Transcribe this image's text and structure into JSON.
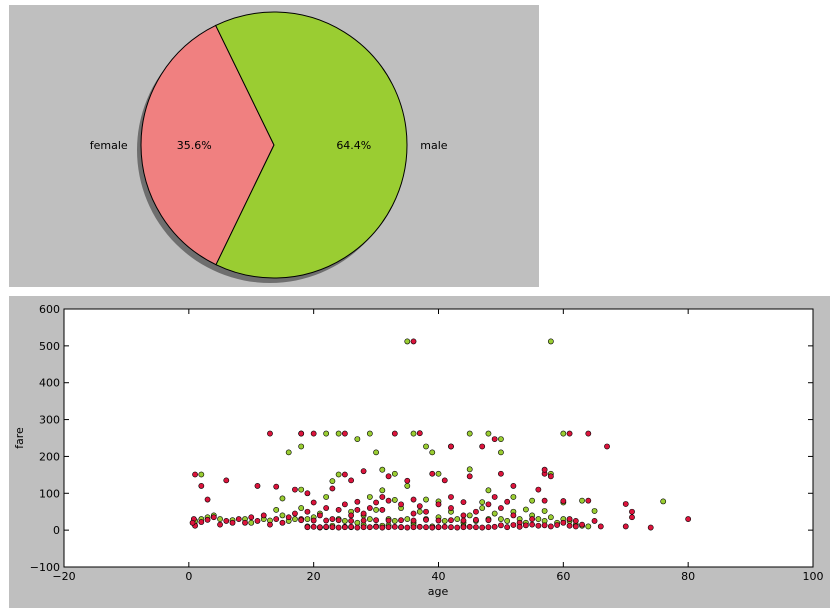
{
  "chart_data": [
    {
      "type": "pie",
      "slices": [
        {
          "label": "female",
          "value": 35.6,
          "pct_label": "35.6%",
          "color": "#f08080"
        },
        {
          "label": "male",
          "value": 64.4,
          "pct_label": "64.4%",
          "color": "#9acd32"
        }
      ],
      "shadow": true,
      "background": "#bfbfbf"
    },
    {
      "type": "scatter",
      "xlabel": "age",
      "ylabel": "fare",
      "xlim": [
        -20,
        100
      ],
      "ylim": [
        -100,
        600
      ],
      "xticks": [
        "−20",
        "0",
        "20",
        "40",
        "60",
        "80",
        "100"
      ],
      "yticks": [
        "−100",
        "0",
        "100",
        "200",
        "300",
        "400",
        "500",
        "600"
      ],
      "grid": false,
      "background": "#bfbfbf",
      "series": [
        {
          "color": "#9acd32",
          "points": [
            [
              35,
              512
            ],
            [
              58,
              512
            ],
            [
              2,
              151
            ],
            [
              16,
              211
            ],
            [
              18,
              227
            ],
            [
              18,
              262
            ],
            [
              22,
              262
            ],
            [
              24,
              262
            ],
            [
              27,
              247
            ],
            [
              29,
              262
            ],
            [
              30,
              211
            ],
            [
              31,
              164
            ],
            [
              33,
              153
            ],
            [
              36,
              262
            ],
            [
              38,
              227
            ],
            [
              39,
              211
            ],
            [
              40,
              153
            ],
            [
              42,
              227
            ],
            [
              45,
              262
            ],
            [
              48,
              262
            ],
            [
              50,
              247
            ],
            [
              50,
              211
            ],
            [
              58,
              153
            ],
            [
              60,
              262
            ],
            [
              24,
              151
            ],
            [
              35,
              120
            ],
            [
              45,
              165
            ],
            [
              23,
              133
            ],
            [
              18,
              110
            ],
            [
              31,
              108
            ],
            [
              15,
              86
            ],
            [
              22,
              90
            ],
            [
              29,
              90
            ],
            [
              33,
              82
            ],
            [
              38,
              83
            ],
            [
              40,
              78
            ],
            [
              47,
              76
            ],
            [
              55,
              80
            ],
            [
              63,
              80
            ],
            [
              76,
              78
            ],
            [
              48,
              108
            ],
            [
              52,
              90
            ],
            [
              60,
              75
            ],
            [
              54,
              56
            ],
            [
              57,
              52
            ],
            [
              65,
              52
            ],
            [
              0.9,
              18
            ],
            [
              1,
              25
            ],
            [
              2,
              30
            ],
            [
              3,
              35
            ],
            [
              4,
              40
            ],
            [
              5,
              30
            ],
            [
              7,
              27
            ],
            [
              9,
              30
            ],
            [
              10,
              20
            ],
            [
              12,
              30
            ],
            [
              13,
              26
            ],
            [
              14,
              55
            ],
            [
              15,
              40
            ],
            [
              16,
              25
            ],
            [
              17,
              30
            ],
            [
              18,
              60
            ],
            [
              19,
              30
            ],
            [
              20,
              35
            ],
            [
              21,
              45
            ],
            [
              22,
              8
            ],
            [
              23,
              12
            ],
            [
              24,
              30
            ],
            [
              25,
              25
            ],
            [
              26,
              50
            ],
            [
              27,
              20
            ],
            [
              28,
              40
            ],
            [
              29,
              30
            ],
            [
              30,
              55
            ],
            [
              31,
              12
            ],
            [
              32,
              30
            ],
            [
              33,
              25
            ],
            [
              34,
              60
            ],
            [
              35,
              30
            ],
            [
              36,
              20
            ],
            [
              37,
              50
            ],
            [
              38,
              30
            ],
            [
              39,
              10
            ],
            [
              40,
              35
            ],
            [
              41,
              25
            ],
            [
              42,
              50
            ],
            [
              43,
              30
            ],
            [
              44,
              20
            ],
            [
              45,
              40
            ],
            [
              46,
              25
            ],
            [
              47,
              60
            ],
            [
              48,
              30
            ],
            [
              49,
              45
            ],
            [
              50,
              30
            ],
            [
              51,
              25
            ],
            [
              52,
              50
            ],
            [
              53,
              30
            ],
            [
              54,
              20
            ],
            [
              55,
              40
            ],
            [
              56,
              30
            ],
            [
              57,
              25
            ],
            [
              58,
              35
            ],
            [
              59,
              20
            ],
            [
              60,
              30
            ],
            [
              61,
              25
            ],
            [
              62,
              15
            ],
            [
              63,
              12
            ],
            [
              64,
              10
            ],
            [
              26,
              8
            ],
            [
              28,
              14
            ],
            [
              30,
              10
            ],
            [
              34,
              8
            ],
            [
              36,
              13
            ],
            [
              40,
              8
            ],
            [
              44,
              11
            ],
            [
              19,
              10
            ],
            [
              21,
              7
            ],
            [
              25,
              9
            ],
            [
              32,
              13
            ]
          ]
        },
        {
          "color": "#dc143c",
          "points": [
            [
              36,
              512
            ],
            [
              1,
              151
            ],
            [
              13,
              262
            ],
            [
              18,
              262
            ],
            [
              20,
              262
            ],
            [
              25,
              262
            ],
            [
              33,
              262
            ],
            [
              37,
              263
            ],
            [
              42,
              227
            ],
            [
              47,
              227
            ],
            [
              49,
              247
            ],
            [
              50,
              153
            ],
            [
              57,
              153
            ],
            [
              61,
              262
            ],
            [
              64,
              262
            ],
            [
              67,
              227
            ],
            [
              57,
              164
            ],
            [
              58,
              146
            ],
            [
              2,
              120
            ],
            [
              6,
              135
            ],
            [
              11,
              120
            ],
            [
              14,
              118
            ],
            [
              17,
              110
            ],
            [
              25,
              151
            ],
            [
              26,
              135
            ],
            [
              28,
              160
            ],
            [
              32,
              146
            ],
            [
              35,
              134
            ],
            [
              39,
              153
            ],
            [
              41,
              135
            ],
            [
              45,
              146
            ],
            [
              52,
              120
            ],
            [
              56,
              110
            ],
            [
              3,
              83
            ],
            [
              19,
              100
            ],
            [
              23,
              113
            ],
            [
              27,
              77
            ],
            [
              31,
              90
            ],
            [
              36,
              83
            ],
            [
              42,
              90
            ],
            [
              44,
              76
            ],
            [
              49,
              90
            ],
            [
              51,
              77
            ],
            [
              57,
              80
            ],
            [
              60,
              79
            ],
            [
              64,
              80
            ],
            [
              70,
              71
            ],
            [
              74,
              7
            ],
            [
              80,
              30
            ],
            [
              71,
              50
            ],
            [
              71,
              35
            ],
            [
              70,
              10
            ],
            [
              65,
              25
            ],
            [
              66,
              10
            ],
            [
              61,
              30
            ],
            [
              62,
              25
            ],
            [
              60,
              20
            ],
            [
              58,
              10
            ],
            [
              55,
              30
            ],
            [
              53,
              20
            ],
            [
              52,
              40
            ],
            [
              50,
              60
            ],
            [
              48,
              70
            ],
            [
              46,
              50
            ],
            [
              44,
              40
            ],
            [
              42,
              60
            ],
            [
              40,
              70
            ],
            [
              38,
              50
            ],
            [
              37,
              65
            ],
            [
              36,
              45
            ],
            [
              34,
              70
            ],
            [
              32,
              80
            ],
            [
              31,
              55
            ],
            [
              30,
              75
            ],
            [
              29,
              60
            ],
            [
              28,
              45
            ],
            [
              27,
              55
            ],
            [
              26,
              40
            ],
            [
              25,
              70
            ],
            [
              24,
              55
            ],
            [
              23,
              30
            ],
            [
              22,
              60
            ],
            [
              21,
              40
            ],
            [
              20,
              75
            ],
            [
              19,
              50
            ],
            [
              18,
              30
            ],
            [
              17,
              45
            ],
            [
              16,
              35
            ],
            [
              15,
              20
            ],
            [
              14,
              30
            ],
            [
              13,
              15
            ],
            [
              12,
              40
            ],
            [
              11,
              25
            ],
            [
              10,
              35
            ],
            [
              9,
              20
            ],
            [
              8,
              30
            ],
            [
              7,
              20
            ],
            [
              6,
              25
            ],
            [
              5,
              15
            ],
            [
              4,
              35
            ],
            [
              3,
              28
            ],
            [
              2,
              22
            ],
            [
              1,
              12
            ],
            [
              0.8,
              30
            ],
            [
              0.6,
              20
            ],
            [
              19,
              8
            ],
            [
              20,
              9
            ],
            [
              21,
              8
            ],
            [
              22,
              9
            ],
            [
              23,
              8
            ],
            [
              24,
              7
            ],
            [
              25,
              8
            ],
            [
              26,
              9
            ],
            [
              27,
              7
            ],
            [
              28,
              8
            ],
            [
              29,
              8
            ],
            [
              30,
              9
            ],
            [
              31,
              7
            ],
            [
              32,
              8
            ],
            [
              33,
              9
            ],
            [
              34,
              8
            ],
            [
              35,
              7
            ],
            [
              36,
              8
            ],
            [
              37,
              9
            ],
            [
              38,
              8
            ],
            [
              39,
              7
            ],
            [
              40,
              8
            ],
            [
              41,
              9
            ],
            [
              42,
              8
            ],
            [
              43,
              7
            ],
            [
              44,
              8
            ],
            [
              45,
              9
            ],
            [
              46,
              8
            ],
            [
              47,
              7
            ],
            [
              48,
              8
            ],
            [
              49,
              9
            ],
            [
              50,
              13
            ],
            [
              51,
              8
            ],
            [
              52,
              14
            ],
            [
              53,
              9
            ],
            [
              54,
              13
            ],
            [
              55,
              15
            ],
            [
              56,
              12
            ],
            [
              57,
              13
            ],
            [
              59,
              14
            ],
            [
              61,
              12
            ],
            [
              62,
              10
            ],
            [
              63,
              15
            ],
            [
              26,
              25
            ],
            [
              28,
              26
            ],
            [
              30,
              27
            ],
            [
              32,
              26
            ],
            [
              34,
              27
            ],
            [
              36,
              26
            ],
            [
              38,
              28
            ],
            [
              40,
              26
            ],
            [
              42,
              27
            ],
            [
              44,
              26
            ],
            [
              46,
              28
            ],
            [
              48,
              27
            ],
            [
              22,
              26
            ],
            [
              24,
              27
            ],
            [
              20,
              26
            ],
            [
              18,
              27
            ]
          ]
        }
      ]
    }
  ]
}
